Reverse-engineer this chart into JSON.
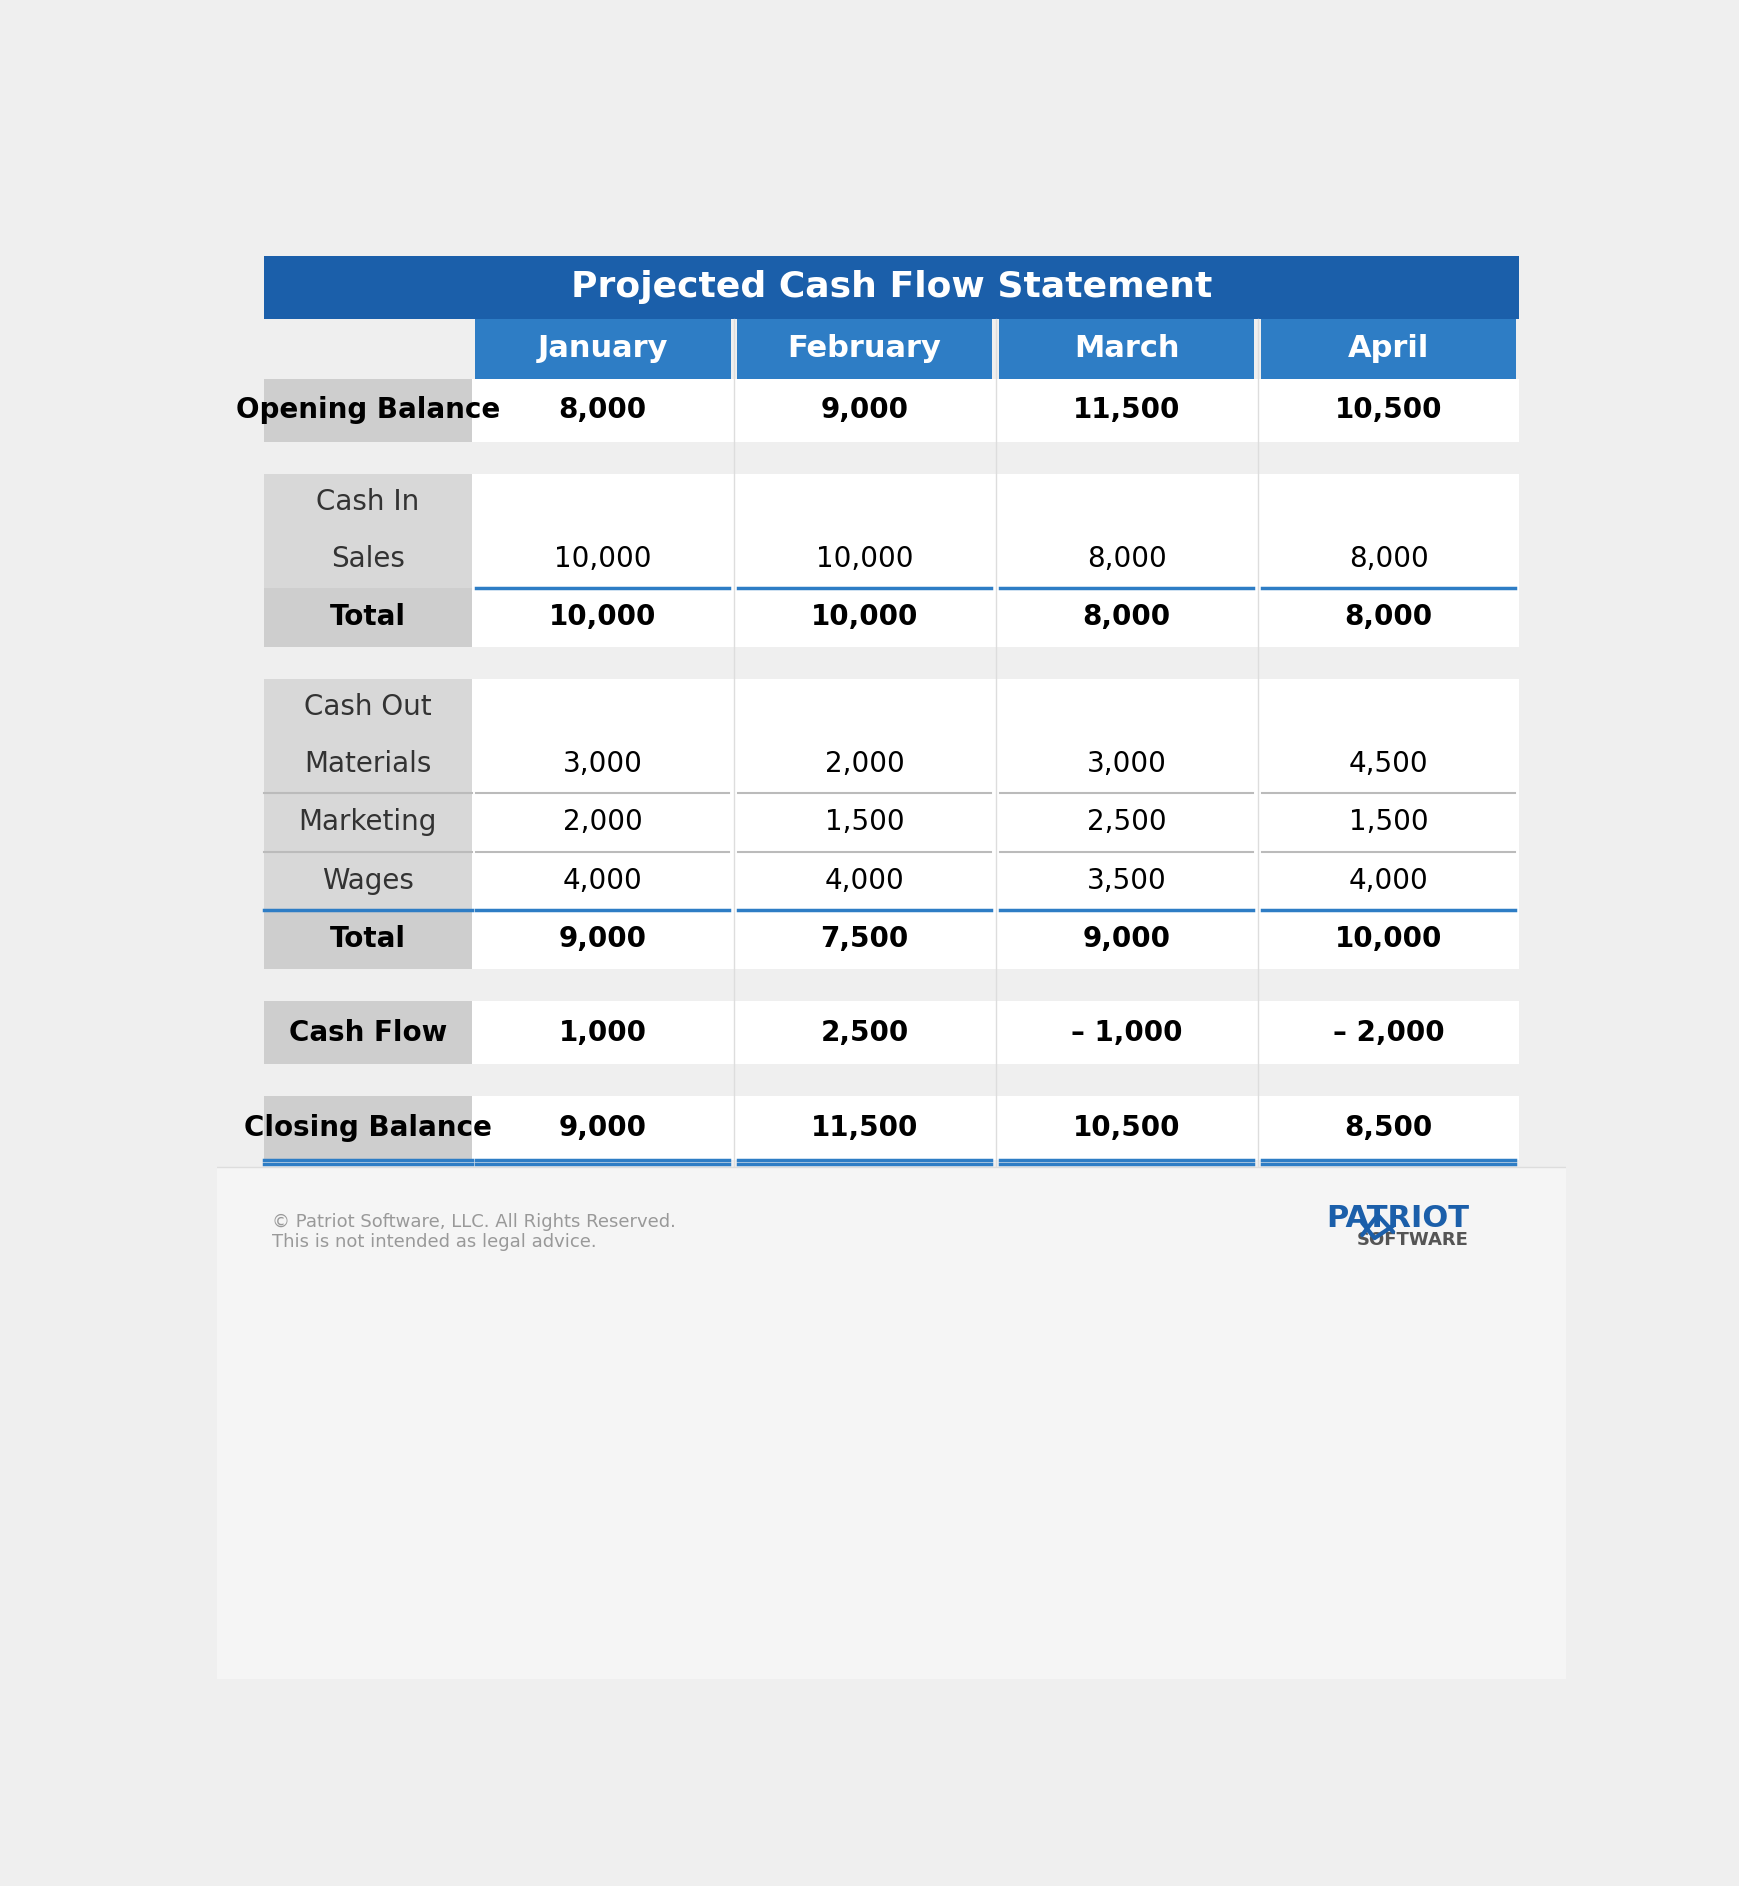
{
  "title": "Projected Cash Flow Statement",
  "title_bg": "#1B5FAA",
  "title_text_color": "#FFFFFF",
  "header_bg": "#2E7DC5",
  "header_text_color": "#FFFFFF",
  "months": [
    "January",
    "February",
    "March",
    "April"
  ],
  "bg_color": "#EFEFEF",
  "table_bg": "#FFFFFF",
  "section_label_bg": "#D8D8D8",
  "bold_label_bg": "#CECECE",
  "opening_balance": [
    "8,000",
    "9,000",
    "11,500",
    "10,500"
  ],
  "sales": [
    "10,000",
    "10,000",
    "8,000",
    "8,000"
  ],
  "cash_in_total": [
    "10,000",
    "10,000",
    "8,000",
    "8,000"
  ],
  "materials": [
    "3,000",
    "2,000",
    "3,000",
    "4,500"
  ],
  "marketing": [
    "2,000",
    "1,500",
    "2,500",
    "1,500"
  ],
  "wages": [
    "4,000",
    "4,000",
    "3,500",
    "4,000"
  ],
  "cash_out_total": [
    "9,000",
    "7,500",
    "9,000",
    "10,000"
  ],
  "cash_flow": [
    "1,000",
    "2,500",
    "– 1,000",
    "– 2,000"
  ],
  "closing_balance": [
    "9,000",
    "11,500",
    "10,500",
    "8,500"
  ],
  "blue_line_color": "#2E7DC5",
  "footer_text1": "© Patriot Software, LLC. All Rights Reserved.",
  "footer_text2": "This is not intended as legal advice.",
  "footer_color": "#999999",
  "patriot_color": "#1B5FAA",
  "software_color": "#555555"
}
